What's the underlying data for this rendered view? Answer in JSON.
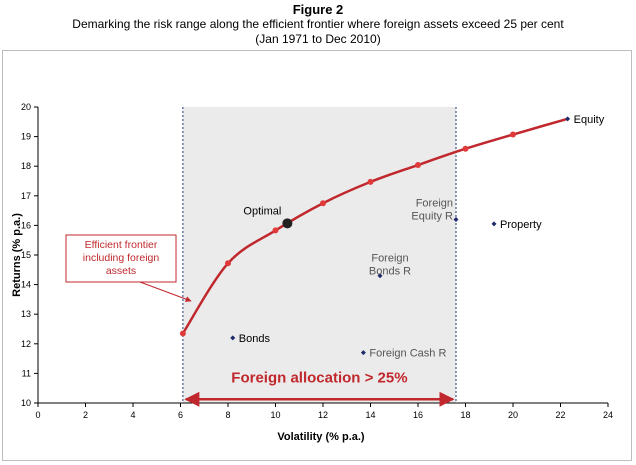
{
  "figure": {
    "label": "Figure 2",
    "title": "Demarking the risk range along the efficient frontier where foreign assets exceed 25 per cent",
    "subtitle": "(Jan 1971 to Dec 2010)"
  },
  "chart_data": {
    "type": "scatter",
    "xlabel": "Volatility (% p.a.)",
    "ylabel": "Returns (% p.a.)",
    "xlim": [
      0,
      24
    ],
    "ylim": [
      10,
      20
    ],
    "xticks": [
      "0",
      "2",
      "4",
      "6",
      "8",
      "10",
      "12",
      "14",
      "16",
      "18",
      "20",
      "22",
      "24"
    ],
    "yticks": [
      "10",
      "11",
      "12",
      "13",
      "14",
      "15",
      "16",
      "17",
      "18",
      "19",
      "20"
    ],
    "grid": false,
    "frontier": {
      "color": "#c0282d",
      "points": [
        {
          "x": 6.1,
          "y": 12.35
        },
        {
          "x": 8.0,
          "y": 14.72
        },
        {
          "x": 10.0,
          "y": 15.83
        },
        {
          "x": 12.0,
          "y": 16.75
        },
        {
          "x": 14.0,
          "y": 17.47
        },
        {
          "x": 16.0,
          "y": 18.04
        },
        {
          "x": 18.0,
          "y": 18.59
        },
        {
          "x": 20.0,
          "y": 19.07
        },
        {
          "x": 22.3,
          "y": 19.6
        }
      ]
    },
    "optimal": {
      "label": "Optimal",
      "x": 10.5,
      "y": 16.07
    },
    "assets": [
      {
        "name": "Equity",
        "x": 22.3,
        "y": 19.6,
        "label_side": "right"
      },
      {
        "name": "Property",
        "x": 19.2,
        "y": 16.05,
        "label_side": "right"
      },
      {
        "name": "Foreign Equity R",
        "x": 17.6,
        "y": 16.2,
        "label_side": "left"
      },
      {
        "name": "Foreign Bonds R",
        "x": 14.4,
        "y": 14.3,
        "label_side": "above"
      },
      {
        "name": "Bonds",
        "x": 8.2,
        "y": 12.2,
        "label_side": "right"
      },
      {
        "name": "Foreign Cash R",
        "x": 13.7,
        "y": 11.7,
        "label_side": "right"
      }
    ],
    "region": {
      "x_from": 6.1,
      "x_to": 17.6,
      "fill": "#ebebeb",
      "label": "Foreign allocation > 25%",
      "label_y": 10.7,
      "color": "#c0282d"
    },
    "callout": {
      "text_lines": [
        "Efficient frontier",
        "including foreign",
        "assets"
      ],
      "color": "#c0282d"
    }
  }
}
